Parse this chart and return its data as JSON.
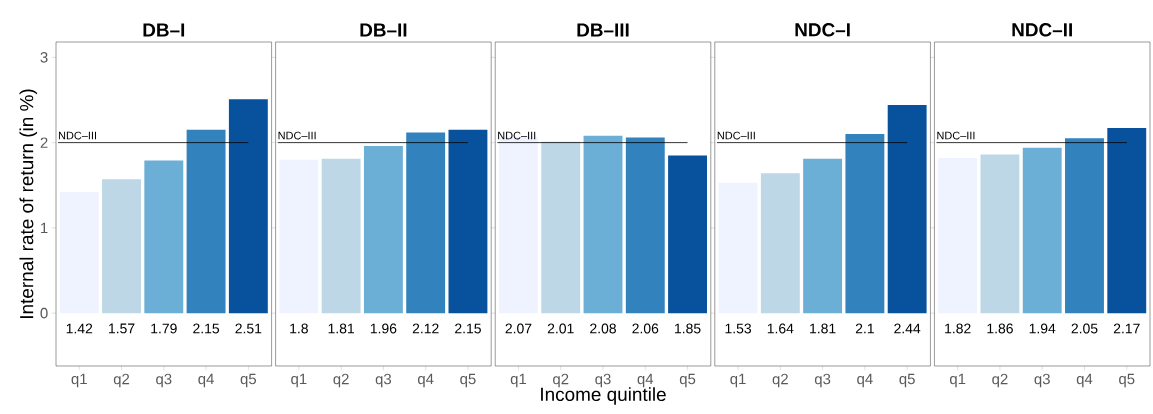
{
  "chart_data": [
    {
      "type": "bar",
      "title": "DB–I",
      "ylabel": "Internal rate of return (in %)",
      "categories": [
        "q1",
        "q2",
        "q3",
        "q4",
        "q5"
      ],
      "values": [
        1.42,
        1.57,
        1.79,
        2.15,
        2.51
      ],
      "colors": [
        "#eff3ff",
        "#bdd7e7",
        "#6baed6",
        "#3182bd",
        "#08519c"
      ],
      "ylim": [
        -0.62,
        3.18
      ],
      "yticks": [
        0,
        1,
        2,
        3
      ],
      "data_labels": true,
      "ref_lines": [
        {
          "axis": "y",
          "value": 2,
          "label": "NDC–III"
        }
      ]
    },
    {
      "type": "bar",
      "title": "DB–II",
      "categories": [
        "q1",
        "q2",
        "q3",
        "q4",
        "q5"
      ],
      "values": [
        1.8,
        1.81,
        1.96,
        2.12,
        2.15
      ],
      "colors": [
        "#eff3ff",
        "#bdd7e7",
        "#6baed6",
        "#3182bd",
        "#08519c"
      ],
      "ylim": [
        -0.62,
        3.18
      ],
      "yticks": [
        0,
        1,
        2,
        3
      ],
      "tick_labels": "x",
      "data_labels": true,
      "ref_lines": [
        {
          "axis": "y",
          "value": 2,
          "label": "NDC–III"
        }
      ]
    },
    {
      "type": "bar",
      "title": "DB–III",
      "xlabel": "Income quintile",
      "categories": [
        "q1",
        "q2",
        "q3",
        "q4",
        "q5"
      ],
      "values": [
        2.07,
        2.01,
        2.08,
        2.06,
        1.85
      ],
      "colors": [
        "#eff3ff",
        "#bdd7e7",
        "#6baed6",
        "#3182bd",
        "#08519c"
      ],
      "ylim": [
        -0.62,
        3.18
      ],
      "yticks": [
        0,
        1,
        2,
        3
      ],
      "tick_labels": "x",
      "data_labels": true,
      "ref_lines": [
        {
          "axis": "y",
          "value": 2,
          "label": "NDC–III"
        }
      ]
    },
    {
      "type": "bar",
      "title": "NDC–I",
      "categories": [
        "q1",
        "q2",
        "q3",
        "q4",
        "q5"
      ],
      "values": [
        1.53,
        1.64,
        1.81,
        2.1,
        2.44
      ],
      "colors": [
        "#eff3ff",
        "#bdd7e7",
        "#6baed6",
        "#3182bd",
        "#08519c"
      ],
      "ylim": [
        -0.62,
        3.18
      ],
      "yticks": [
        0,
        1,
        2,
        3
      ],
      "tick_labels": "x",
      "data_labels": true,
      "ref_lines": [
        {
          "axis": "y",
          "value": 2,
          "label": "NDC–III"
        }
      ]
    },
    {
      "type": "bar",
      "title": "NDC–II",
      "categories": [
        "q1",
        "q2",
        "q3",
        "q4",
        "q5"
      ],
      "values": [
        1.82,
        1.86,
        1.94,
        2.05,
        2.17
      ],
      "colors": [
        "#eff3ff",
        "#bdd7e7",
        "#6baed6",
        "#3182bd",
        "#08519c"
      ],
      "ylim": [
        -0.62,
        3.18
      ],
      "yticks": [
        0,
        1,
        2,
        3
      ],
      "tick_labels": "x",
      "data_labels": true,
      "ref_lines": [
        {
          "axis": "y",
          "value": 2,
          "label": "NDC–III"
        }
      ]
    }
  ]
}
